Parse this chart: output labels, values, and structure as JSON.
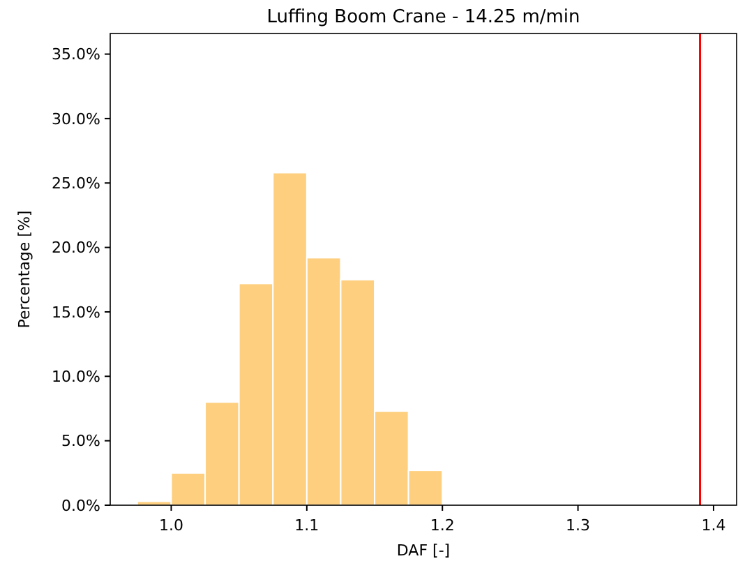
{
  "chart_data": {
    "type": "histogram",
    "title": "Luffing Boom Crane - 14.25 m/min",
    "xlabel": "DAF [-]",
    "ylabel": "Percentage [%]",
    "bins": [
      0.975,
      1.0,
      1.025,
      1.05,
      1.075,
      1.1,
      1.125,
      1.15,
      1.175,
      1.2
    ],
    "values": [
      0.3,
      2.5,
      8.0,
      17.2,
      25.8,
      19.2,
      17.5,
      7.3,
      2.7
    ],
    "color": "#fecf7e",
    "xlim": [
      0.955,
      1.417
    ],
    "ylim": [
      0,
      36.6
    ],
    "xticks": [
      {
        "value": 1.0,
        "label": "1.0"
      },
      1.1,
      1.2,
      1.3,
      1.4
    ],
    "yticks": [
      {
        "value": 0,
        "label": "0.0%"
      },
      {
        "value": 5,
        "label": "5.0%"
      },
      {
        "value": 10,
        "label": "10.0%"
      },
      {
        "value": 15,
        "label": "15.0%"
      },
      {
        "value": 20,
        "label": "20.0%"
      },
      {
        "value": 25,
        "label": "25.0%"
      },
      {
        "value": 30,
        "label": "30.0%"
      },
      {
        "value": 35,
        "label": "35.0%"
      }
    ],
    "ref_lines": [
      {
        "axis": "x",
        "value": 1.39,
        "color": "#ff0000"
      }
    ]
  }
}
